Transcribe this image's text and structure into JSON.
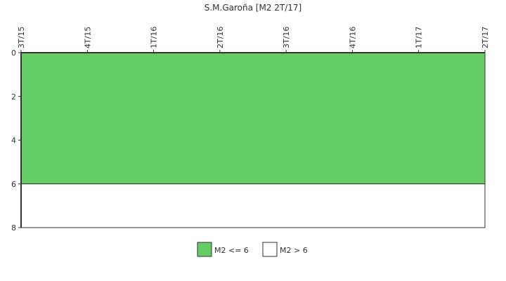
{
  "chart_data": {
    "type": "area",
    "title": "S.M.Garoña [M2 2T/17]",
    "categories": [
      "3T/15",
      "4T/15",
      "1T/16",
      "2T/16",
      "3T/16",
      "4T/16",
      "1T/17",
      "2T/17"
    ],
    "y_axis": {
      "ticks": [
        0,
        2,
        4,
        6,
        8
      ],
      "range": [
        0,
        8
      ],
      "inverted": true
    },
    "series": [
      {
        "name": "M2 <= 6",
        "from": 0,
        "to": 6,
        "color": "#66cc66"
      },
      {
        "name": "M2 > 6",
        "from": 6,
        "to": 8,
        "color": "#ffffff"
      }
    ],
    "legend_position": "bottom",
    "grid": false
  }
}
